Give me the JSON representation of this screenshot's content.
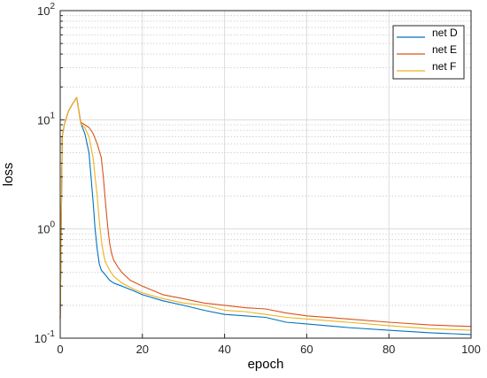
{
  "chart_data": {
    "type": "line",
    "title": "",
    "xlabel": "epoch",
    "ylabel": "loss",
    "xlim": [
      0,
      100
    ],
    "ylim": [
      0.1,
      100
    ],
    "yscale": "log",
    "grid": true,
    "legend_position": "top-right",
    "xticks": [
      {
        "value": 0,
        "label": "0"
      },
      {
        "value": 20,
        "label": "20"
      },
      {
        "value": 40,
        "label": "40"
      },
      {
        "value": 60,
        "label": "60"
      },
      {
        "value": 80,
        "label": "80"
      },
      {
        "value": 100,
        "label": "100"
      }
    ],
    "yticks": [
      {
        "value": 0.1,
        "base": "10",
        "exp": "-1"
      },
      {
        "value": 1,
        "base": "10",
        "exp": "0"
      },
      {
        "value": 10,
        "base": "10",
        "exp": "1"
      },
      {
        "value": 100,
        "base": "10",
        "exp": "2"
      }
    ],
    "series": [
      {
        "name": "net D",
        "color": "#0072BD",
        "x": [
          0,
          0.5,
          1,
          2,
          3,
          4,
          5,
          6,
          7,
          7.5,
          8,
          8.5,
          9,
          9.5,
          10,
          11,
          12,
          13,
          15,
          18,
          20,
          25,
          30,
          35,
          40,
          45,
          50,
          55,
          60,
          70,
          80,
          90,
          100
        ],
        "y": [
          0.15,
          7,
          9,
          12,
          14,
          16,
          9.3,
          7.5,
          5,
          3,
          1.8,
          1.0,
          0.65,
          0.48,
          0.42,
          0.38,
          0.34,
          0.32,
          0.3,
          0.27,
          0.25,
          0.22,
          0.2,
          0.18,
          0.165,
          0.16,
          0.155,
          0.14,
          0.135,
          0.125,
          0.118,
          0.112,
          0.108
        ]
      },
      {
        "name": "net E",
        "color": "#D95319",
        "x": [
          0,
          0.5,
          1,
          2,
          3,
          4,
          5,
          6,
          7,
          8,
          9,
          10,
          10.5,
          11,
          11.5,
          12,
          12.5,
          13,
          14,
          15,
          17,
          20,
          25,
          30,
          35,
          40,
          45,
          50,
          55,
          60,
          70,
          80,
          90,
          100
        ],
        "y": [
          0.15,
          7,
          9,
          12,
          14,
          16,
          9.5,
          9,
          8.5,
          7.5,
          6,
          4.5,
          3,
          1.8,
          1.1,
          0.75,
          0.6,
          0.52,
          0.45,
          0.4,
          0.34,
          0.3,
          0.25,
          0.23,
          0.21,
          0.2,
          0.19,
          0.185,
          0.17,
          0.16,
          0.15,
          0.14,
          0.132,
          0.128
        ]
      },
      {
        "name": "net F",
        "color": "#EDB120",
        "x": [
          0,
          0.5,
          1,
          2,
          3,
          4,
          5,
          6,
          7,
          8,
          8.5,
          9,
          9.5,
          10,
          10.5,
          11,
          12,
          13,
          15,
          18,
          20,
          25,
          30,
          35,
          40,
          45,
          50,
          55,
          60,
          70,
          80,
          90,
          100
        ],
        "y": [
          0.15,
          7,
          9,
          12,
          14,
          16,
          9.2,
          8.5,
          7,
          4.5,
          3,
          2.0,
          1.2,
          0.8,
          0.6,
          0.5,
          0.42,
          0.37,
          0.32,
          0.28,
          0.26,
          0.23,
          0.21,
          0.2,
          0.18,
          0.175,
          0.165,
          0.155,
          0.15,
          0.14,
          0.13,
          0.122,
          0.118
        ]
      }
    ]
  }
}
